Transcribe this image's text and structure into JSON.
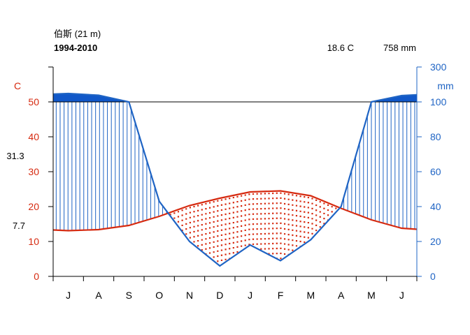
{
  "header": {
    "station": "伯斯 (21 m)",
    "period": "1994-2010",
    "mean_temp": "18.6 C",
    "annual_precip": "758 mm"
  },
  "side_labels": {
    "max_temp": "31.3",
    "min_temp": "7.7"
  },
  "colors": {
    "temperature": "#d62a10",
    "precipitation": "#1f64c4",
    "excess_fill": "#1158c9",
    "axis": "#000000"
  },
  "chart_data": {
    "type": "line",
    "title": "伯斯 (21 m) 1994-2010",
    "categories": [
      "J",
      "A",
      "S",
      "O",
      "N",
      "D",
      "J",
      "F",
      "M",
      "A",
      "M",
      "J"
    ],
    "xlim": [
      0,
      12
    ],
    "y_left": {
      "label": "C",
      "ylim": [
        0,
        60
      ],
      "ticks": [
        0,
        10,
        20,
        30,
        40,
        50
      ]
    },
    "y_right": {
      "label": "mm",
      "ylim": [
        0,
        300
      ],
      "ticks": [
        0,
        20,
        40,
        60,
        80,
        100,
        300
      ]
    },
    "series": [
      {
        "name": "temperature",
        "axis": "left",
        "unit": "C",
        "x": [
          0,
          0.5,
          1.5,
          2.5,
          3.5,
          4.5,
          5.5,
          6.5,
          7.5,
          8.5,
          9.5,
          10.5,
          11.5,
          12
        ],
        "values": [
          13.3,
          13.1,
          13.4,
          14.6,
          17.2,
          20.3,
          22.4,
          24.2,
          24.5,
          23.1,
          19.5,
          16.2,
          13.8,
          13.5
        ]
      },
      {
        "name": "precipitation",
        "axis": "right",
        "unit": "mm",
        "x": [
          0,
          0.5,
          1.5,
          2.5,
          3.5,
          4.5,
          5.5,
          6.5,
          7.5,
          8.5,
          9.5,
          10.5,
          11.5,
          12
        ],
        "values": [
          145,
          148,
          138,
          100,
          43,
          20,
          6,
          18,
          9,
          21,
          40,
          100,
          136,
          141
        ]
      }
    ],
    "grid": false,
    "legend": "none"
  }
}
